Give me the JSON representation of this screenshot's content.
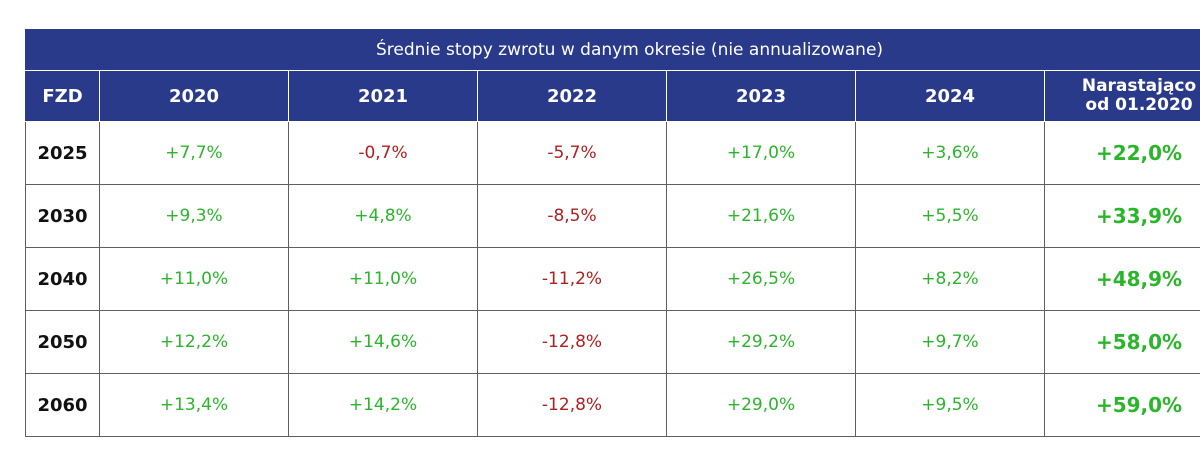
{
  "title": "Średnie stopy zwrotu w danym okresie (nie annualizowane)",
  "headers": {
    "fzd": "FZD",
    "years": [
      "2020",
      "2021",
      "2022",
      "2023",
      "2024"
    ],
    "cumulative_line1": "Narastająco",
    "cumulative_line2": "od 01.2020"
  },
  "rows": [
    {
      "fzd": "2025",
      "values": [
        "+7,7%",
        "-0,7%",
        "-5,7%",
        "+17,0%",
        "+3,6%"
      ],
      "total": "+22,0%"
    },
    {
      "fzd": "2030",
      "values": [
        "+9,3%",
        "+4,8%",
        "-8,5%",
        "+21,6%",
        "+5,5%"
      ],
      "total": "+33,9%"
    },
    {
      "fzd": "2040",
      "values": [
        "+11,0%",
        "+11,0%",
        "-11,2%",
        "+26,5%",
        "+8,2%"
      ],
      "total": "+48,9%"
    },
    {
      "fzd": "2050",
      "values": [
        "+12,2%",
        "+14,6%",
        "-12,8%",
        "+29,2%",
        "+9,7%"
      ],
      "total": "+58,0%"
    },
    {
      "fzd": "2060",
      "values": [
        "+13,4%",
        "+14,2%",
        "-12,8%",
        "+29,0%",
        "+9,5%"
      ],
      "total": "+59,0%"
    }
  ],
  "colors": {
    "header_bg": "#2a3a8a",
    "positive": "#2bb52b",
    "negative": "#b02020"
  }
}
